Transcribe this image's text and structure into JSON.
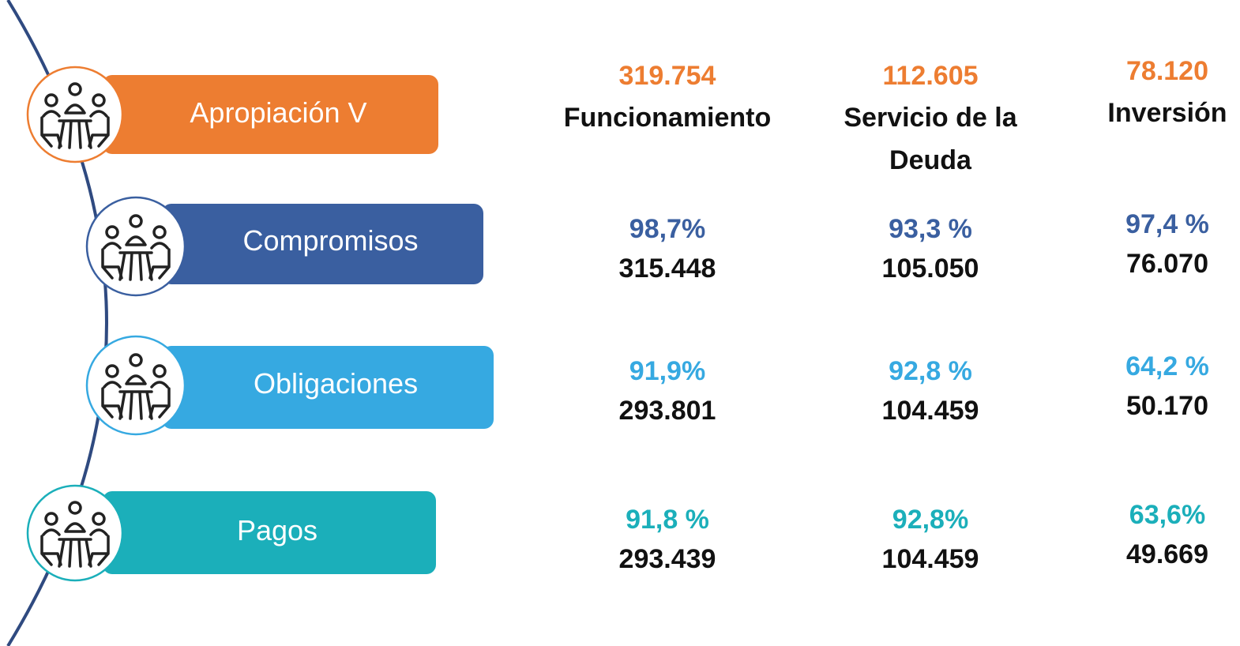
{
  "columns": [
    {
      "amount": "319.754",
      "label": "Funcionamiento"
    },
    {
      "amount": "112.605",
      "label": "Servicio de la Deuda"
    },
    {
      "amount": "78.120",
      "label": "Inversión"
    }
  ],
  "first_stage": "Apropiación V",
  "rows": [
    {
      "label": "Compromisos",
      "cells": [
        {
          "percent": "98,7%",
          "amount": "315.448"
        },
        {
          "percent": "93,3 %",
          "amount": "105.050"
        },
        {
          "percent": "97,4 %",
          "amount": "76.070"
        }
      ]
    },
    {
      "label": "Obligaciones",
      "cells": [
        {
          "percent": "91,9%",
          "amount": "293.801"
        },
        {
          "percent": "92,8 %",
          "amount": "104.459"
        },
        {
          "percent": "64,2 %",
          "amount": "50.170"
        }
      ]
    },
    {
      "label": "Pagos",
      "cells": [
        {
          "percent": "91,8 %",
          "amount": "293.439"
        },
        {
          "percent": "92,8%",
          "amount": "104.459"
        },
        {
          "percent": "63,6%",
          "amount": "49.669"
        }
      ]
    }
  ]
}
